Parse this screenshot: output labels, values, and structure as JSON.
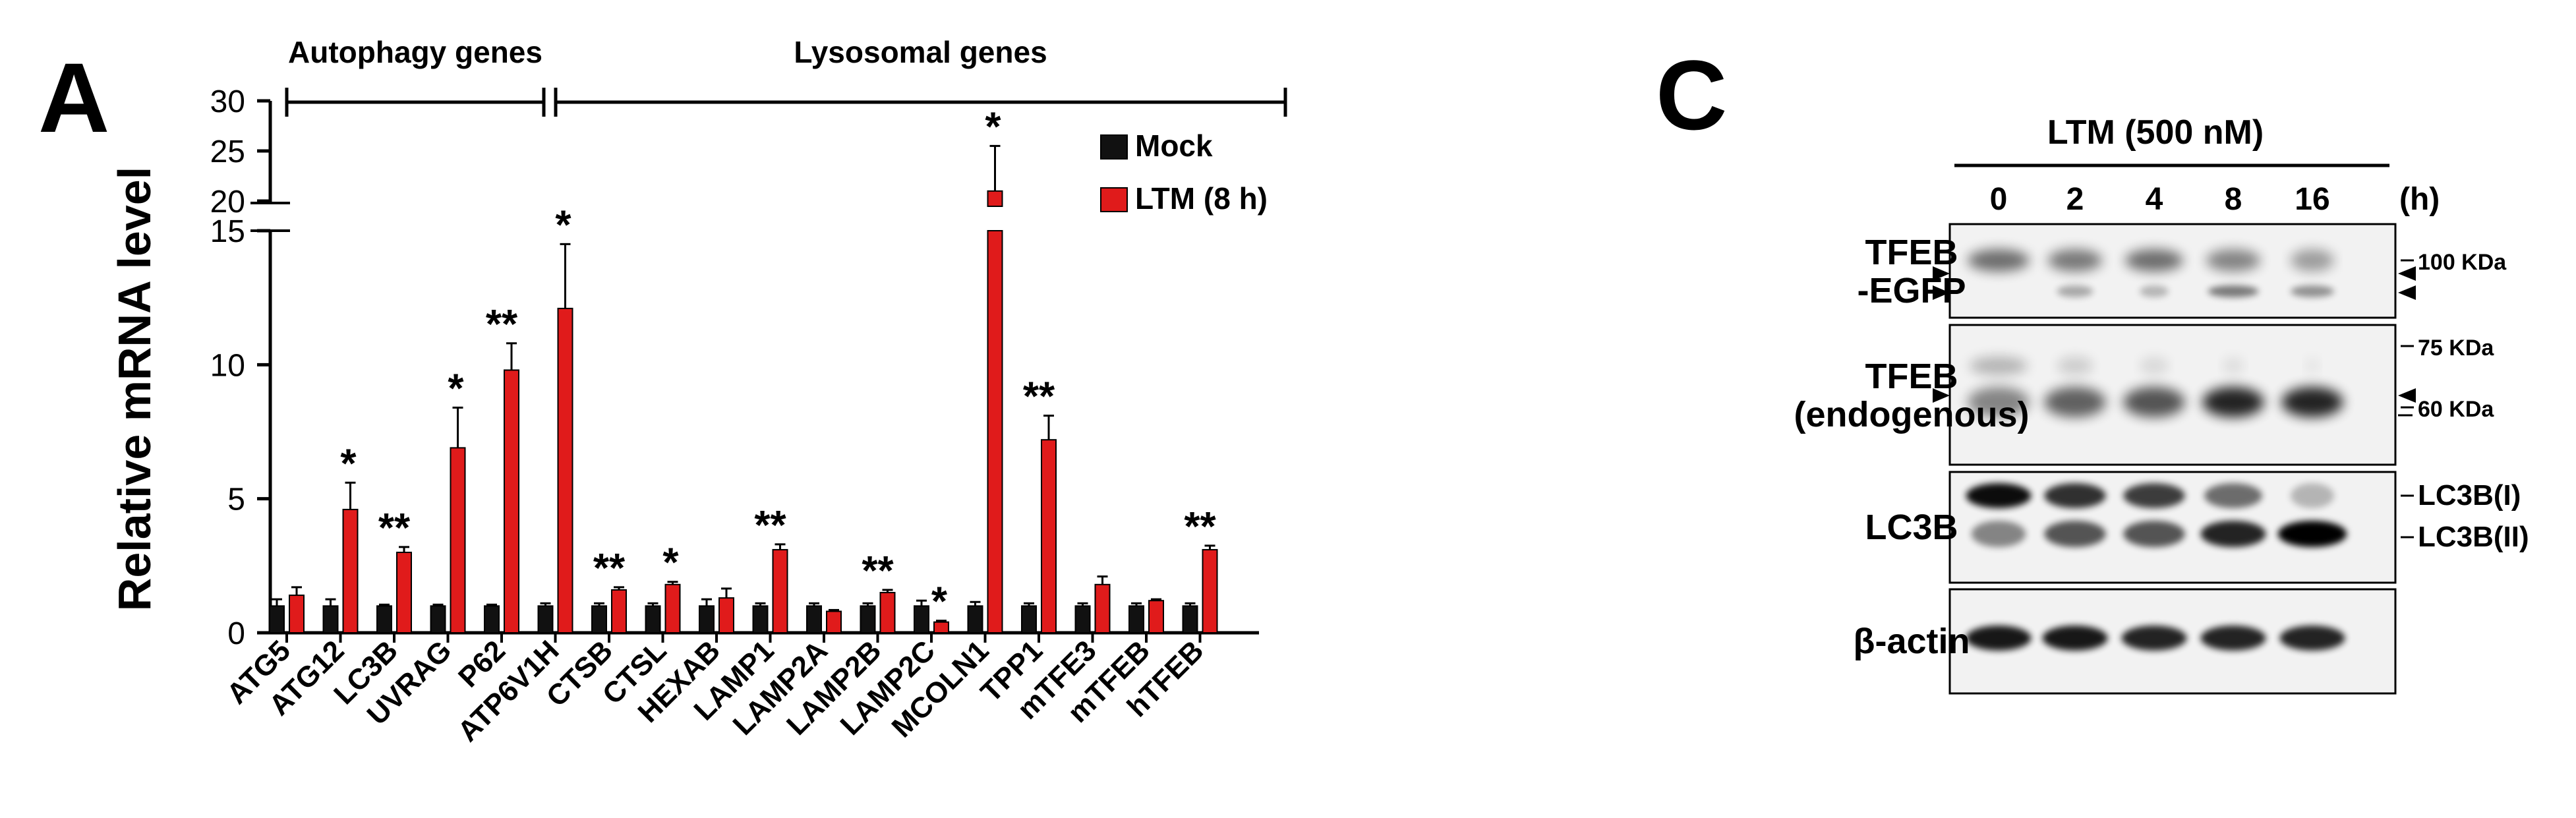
{
  "panel_a": {
    "letter": "A",
    "chart_data": {
      "type": "bar",
      "ylabel": "Relative mRNA level",
      "y_lower_ticks": [
        0,
        5,
        10,
        15
      ],
      "y_upper_ticks": [
        20,
        25,
        30
      ],
      "ylim_lower": [
        0,
        15
      ],
      "ylim_upper": [
        20,
        30
      ],
      "categories": [
        "ATG5",
        "ATG12",
        "LC3B",
        "UVRAG",
        "P62",
        "ATP6V1H",
        "CTSB",
        "CTSL",
        "HEXAB",
        "LAMP1",
        "LAMP2A",
        "LAMP2B",
        "LAMP2C",
        "MCOLN1",
        "TPP1",
        "mTFE3",
        "mTFEB",
        "hTFEB"
      ],
      "series": [
        {
          "name": "Mock",
          "color": "#111111",
          "values": [
            1.0,
            1.0,
            1.0,
            1.0,
            1.0,
            1.0,
            1.0,
            1.0,
            1.0,
            1.0,
            1.0,
            1.0,
            1.0,
            1.0,
            1.0,
            1.0,
            1.0,
            1.0
          ],
          "errors": [
            0.25,
            0.25,
            0.05,
            0.05,
            0.05,
            0.1,
            0.1,
            0.1,
            0.25,
            0.1,
            0.1,
            0.1,
            0.2,
            0.15,
            0.1,
            0.1,
            0.1,
            0.1
          ]
        },
        {
          "name": "LTM (8 h)",
          "color": "#e01b1b",
          "values": [
            1.4,
            4.6,
            3.0,
            6.9,
            9.8,
            12.1,
            1.6,
            1.8,
            1.3,
            3.1,
            0.8,
            1.5,
            0.4,
            21.0,
            7.2,
            1.8,
            1.2,
            3.1
          ],
          "errors": [
            0.3,
            1.0,
            0.2,
            1.5,
            1.0,
            2.4,
            0.1,
            0.1,
            0.35,
            0.2,
            0.05,
            0.1,
            0.05,
            4.5,
            0.9,
            0.3,
            0.05,
            0.15
          ]
        }
      ],
      "significance": [
        "",
        "*",
        "**",
        "*",
        "**",
        "*",
        "**",
        "*",
        "",
        "**",
        "",
        "**",
        "*",
        "*",
        "**",
        "",
        "",
        "**"
      ],
      "groups": [
        {
          "label": "Autophagy genes",
          "from": 0,
          "to": 4
        },
        {
          "label": "Lysosomal genes",
          "from": 5,
          "to": 17
        }
      ],
      "legend_placement": "top-right"
    }
  },
  "panel_c": {
    "letter": "C",
    "treatment_label": "LTM (500 nM)",
    "timepoints": [
      "0",
      "2",
      "4",
      "8",
      "16"
    ],
    "time_unit": "(h)",
    "rows": [
      {
        "label_lines": [
          "TFEB",
          "-EGFP"
        ],
        "right_labels": [
          "100 KDa"
        ]
      },
      {
        "label_lines": [
          "TFEB",
          "(endogenous)"
        ],
        "right_labels": [
          "75 KDa",
          "60 KDa"
        ]
      },
      {
        "label_lines": [
          "LC3B"
        ],
        "right_labels": [
          "LC3B(I)",
          "LC3B(II)"
        ]
      },
      {
        "label_lines": [
          "β-actin"
        ],
        "right_labels": []
      }
    ]
  }
}
